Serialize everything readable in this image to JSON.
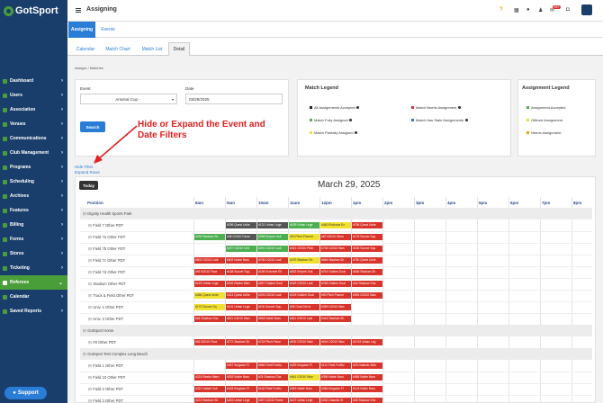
{
  "app": {
    "logo": "GotSport",
    "page_title": "Assigning",
    "badge": "99+"
  },
  "topbar_icons": [
    "help-icon",
    "grid-icon",
    "user-icon",
    "people-icon",
    "mail-icon",
    "chat-icon",
    "settings-icon"
  ],
  "sidebar": {
    "items": [
      {
        "label": "Dashboard",
        "icon": "dashboard-icon"
      },
      {
        "label": "Users",
        "icon": "users-icon"
      },
      {
        "label": "Association",
        "icon": "association-icon"
      },
      {
        "label": "Venues",
        "icon": "venues-icon"
      },
      {
        "label": "Communications",
        "icon": "communications-icon"
      },
      {
        "label": "Club Management",
        "icon": "club-icon"
      },
      {
        "label": "Programs",
        "icon": "programs-icon"
      },
      {
        "label": "Scheduling",
        "icon": "scheduling-icon"
      },
      {
        "label": "Archives",
        "icon": "archives-icon"
      },
      {
        "label": "Features",
        "icon": "features-icon"
      },
      {
        "label": "Billing",
        "icon": "billing-icon"
      },
      {
        "label": "Forms",
        "icon": "forms-icon"
      },
      {
        "label": "Stores",
        "icon": "stores-icon"
      },
      {
        "label": "Ticketing",
        "icon": "ticketing-icon"
      },
      {
        "label": "Referees",
        "icon": "referees-icon",
        "active": true
      },
      {
        "label": "Calendar",
        "icon": "calendar-icon"
      },
      {
        "label": "Saved Reports",
        "icon": "reports-icon"
      }
    ],
    "support_label": "Support"
  },
  "main_tabs": [
    {
      "label": "Assigning",
      "active": true
    },
    {
      "label": "Events",
      "active": false
    }
  ],
  "sub_tabs": [
    {
      "label": "Calendar"
    },
    {
      "label": "Match Chart"
    },
    {
      "label": "Match List"
    },
    {
      "label": "Detail",
      "active": true
    }
  ],
  "breadcrumb": "Assignr  /  Matches",
  "filters": {
    "event_label": "Event",
    "event_value": "Arsenal Cup -",
    "date_label": "Date",
    "date_value": "03/29/2025",
    "search_label": "Search"
  },
  "match_legend": {
    "title": "Match Legend",
    "items": [
      {
        "label": "All Assignments Accepted",
        "color": "#222222"
      },
      {
        "label": "Match Needs Assignment",
        "color": "#d9342b"
      },
      {
        "label": "Match Fully Assigned",
        "color": "#4caf50"
      },
      {
        "label": "Match Has Stale Assignments",
        "color": "#2a7dd6"
      },
      {
        "label": "Match Partially Assigned",
        "color": "#f0e030"
      }
    ]
  },
  "assignment_legend": {
    "title": "Assignment Legend",
    "items": [
      {
        "label": "Assignment Accepted",
        "color": "#4caf50"
      },
      {
        "label": "Offered Assignment",
        "color": "#f0e030"
      },
      {
        "label": "Needs Assignment",
        "color": "#e8a000"
      }
    ]
  },
  "annotation": {
    "line1": "Hide or Expand the Event and",
    "line2": "Date Filters"
  },
  "links": {
    "hide_filter": "Hide Filter",
    "expand_rows": "Expand Rows"
  },
  "calendar": {
    "today_label": "Today",
    "title": "March 29, 2025",
    "position_header": "Position",
    "hours": [
      "8am",
      "9am",
      "10am",
      "11am",
      "12pm",
      "1pm",
      "2pm",
      "3pm",
      "4pm",
      "5pm",
      "6pm",
      "7pm",
      "8pm"
    ]
  },
  "schedule": [
    {
      "type": "group",
      "label": "Dignity Health Sports Park"
    },
    {
      "type": "field",
      "label": "Field 7 Other PDT",
      "events": [
        {
          "start": 1.0,
          "width": 1,
          "text": "#296 Quest Unite",
          "color": "#555555"
        },
        {
          "start": 2.0,
          "width": 1,
          "text": "#131 Urban Lege",
          "color": "#555555"
        },
        {
          "start": 3.0,
          "width": 1,
          "text": "#159 Urban Lege",
          "color": "#4caf50"
        },
        {
          "start": 4.0,
          "width": 1,
          "text": "#460 Endzone Ex",
          "color": "#f0e030"
        },
        {
          "start": 5.0,
          "width": 1,
          "text": "#756 Quest Unite",
          "color": "#d9342b"
        }
      ]
    },
    {
      "type": "field",
      "label": "Field 7a Other PDT",
      "events": [
        {
          "start": 0.0,
          "width": 1,
          "text": "#290 Stadium Sh",
          "color": "#4caf50"
        },
        {
          "start": 1.0,
          "width": 1,
          "text": "#38 G2010 Fame",
          "color": "#555555"
        },
        {
          "start": 2.0,
          "width": 1,
          "text": "#298 Empire Unit",
          "color": "#4caf50"
        },
        {
          "start": 3.0,
          "width": 1,
          "text": "#20 Pitch Pioneer",
          "color": "#f0e030"
        },
        {
          "start": 4.0,
          "width": 1,
          "text": "#67 B2010 Strea",
          "color": "#d9342b"
        },
        {
          "start": 5.0,
          "width": 1,
          "text": "#176 Soccer Squ",
          "color": "#d9342b"
        }
      ]
    },
    {
      "type": "field",
      "label": "Field 7b Other PDT",
      "events": [
        {
          "start": 1.0,
          "width": 1,
          "text": "#307 G2010 Unit",
          "color": "#4caf50"
        },
        {
          "start": 2.0,
          "width": 1,
          "text": "#251 G2010 Ladi",
          "color": "#4caf50"
        },
        {
          "start": 3.0,
          "width": 1,
          "text": "#321 G2010 Pitch",
          "color": "#d9342b"
        },
        {
          "start": 4.0,
          "width": 1,
          "text": "#736 G2010 Wan",
          "color": "#d9342b"
        },
        {
          "start": 5.0,
          "width": 1,
          "text": "#155 Soccer Squ",
          "color": "#d9342b"
        }
      ]
    },
    {
      "type": "field",
      "label": "Field 7c Other PDT",
      "events": [
        {
          "start": 0.0,
          "width": 1,
          "text": "#502 G2010 Ladi",
          "color": "#d9342b"
        },
        {
          "start": 1.0,
          "width": 1,
          "text": "#603 Noble Naru",
          "color": "#d9342b"
        },
        {
          "start": 2.0,
          "width": 1,
          "text": "#708 G2010 Ladi",
          "color": "#d9342b"
        },
        {
          "start": 3.0,
          "width": 1,
          "text": "#479 Stadium Sh",
          "color": "#f0e030"
        },
        {
          "start": 4.0,
          "width": 1,
          "text": "#664 Stadium Sh",
          "color": "#d9342b"
        },
        {
          "start": 5.0,
          "width": 1,
          "text": "#780 Quest Unite",
          "color": "#d9342b"
        }
      ]
    },
    {
      "type": "field",
      "label": "Field 7d Other PDT",
      "events": [
        {
          "start": 0.0,
          "width": 1,
          "text": "#91 B2010 Floor",
          "color": "#d9342b"
        },
        {
          "start": 1.0,
          "width": 1,
          "text": "#168 Soccer Squ",
          "color": "#d9342b"
        },
        {
          "start": 2.0,
          "width": 1,
          "text": "#186 Endzone Ell",
          "color": "#d9342b"
        },
        {
          "start": 3.0,
          "width": 1,
          "text": "#632 Empire Unit",
          "color": "#d9342b"
        },
        {
          "start": 4.0,
          "width": 1,
          "text": "#761 Golden Goal",
          "color": "#d9342b"
        },
        {
          "start": 5.0,
          "width": 1,
          "text": "#636 Stadium Sh",
          "color": "#d9342b"
        }
      ]
    },
    {
      "type": "field",
      "label": "Stadium Other PDT",
      "events": [
        {
          "start": 0.0,
          "width": 1,
          "text": "#149 Urban Lege",
          "color": "#d9342b"
        },
        {
          "start": 1.0,
          "width": 1,
          "text": "#292 Realm Warr",
          "color": "#d9342b"
        },
        {
          "start": 2.0,
          "width": 1,
          "text": "#537 Golden Goal",
          "color": "#d9342b"
        },
        {
          "start": 3.0,
          "width": 1,
          "text": "#315 G2010 Ladi",
          "color": "#d9342b"
        },
        {
          "start": 4.0,
          "width": 1,
          "text": "#765 Golden Goal",
          "color": "#d9342b"
        },
        {
          "start": 5.0,
          "width": 1,
          "text": "#44 Shadow Cha",
          "color": "#d9342b"
        }
      ]
    },
    {
      "type": "field",
      "label": "Track & Field Other PDT",
      "events": [
        {
          "start": 0.0,
          "width": 1,
          "text": "#456 Quest Unite",
          "color": "#f0e030"
        },
        {
          "start": 1.0,
          "width": 1,
          "text": "#314 Quest Unite",
          "color": "#d9342b"
        },
        {
          "start": 2.0,
          "width": 1,
          "text": "#294 G2010 Ladi",
          "color": "#d9342b"
        },
        {
          "start": 3.0,
          "width": 1,
          "text": "#129 Golden Goal",
          "color": "#d9342b"
        },
        {
          "start": 4.0,
          "width": 1,
          "text": "#90 Pitch Pionee",
          "color": "#d9342b"
        },
        {
          "start": 5.0,
          "width": 1,
          "text": "#394 G2010 Wan",
          "color": "#d9342b"
        }
      ]
    },
    {
      "type": "field",
      "label": "Univ. 1 Other PDT",
      "events": [
        {
          "start": 0.0,
          "width": 1,
          "text": "#170 Soccer Sq",
          "color": "#f0e030"
        },
        {
          "start": 1.0,
          "width": 1,
          "text": "#101 Urban Lege",
          "color": "#d9342b"
        },
        {
          "start": 2.0,
          "width": 1,
          "text": "#100 Soccer Squ",
          "color": "#d9342b"
        },
        {
          "start": 3.0,
          "width": 1,
          "text": "#92 Goal Girl st",
          "color": "#d9342b"
        },
        {
          "start": 4.0,
          "width": 1,
          "text": "#399 G2010 Wan",
          "color": "#d9342b"
        }
      ]
    },
    {
      "type": "field",
      "label": "Univ. 2 Other PDT",
      "events": [
        {
          "start": 0.0,
          "width": 1,
          "text": "#64 Shadow Cha",
          "color": "#d9342b"
        },
        {
          "start": 1.0,
          "width": 1,
          "text": "#611 G2010 Wan",
          "color": "#d9342b"
        },
        {
          "start": 2.0,
          "width": 1,
          "text": "#518 Noble Naru",
          "color": "#d9342b"
        },
        {
          "start": 3.0,
          "width": 1,
          "text": "#511 G2010 Ladi",
          "color": "#d9342b"
        },
        {
          "start": 4.0,
          "width": 1,
          "text": "#318 Stadium Sh",
          "color": "#d9342b"
        }
      ]
    },
    {
      "type": "group",
      "label": "GotSport Home"
    },
    {
      "type": "field",
      "label": "#9 Other PDT",
      "events": [
        {
          "start": 0.0,
          "width": 1,
          "text": "#81 B2010 Floor",
          "color": "#d9342b"
        },
        {
          "start": 1.0,
          "width": 1,
          "text": "#772 Stadium Sh",
          "color": "#d9342b"
        },
        {
          "start": 2.0,
          "width": 1,
          "text": "#718 Pitch Pione",
          "color": "#d9342b"
        },
        {
          "start": 3.0,
          "width": 1,
          "text": "#676 G2010 Wan",
          "color": "#d9342b"
        },
        {
          "start": 4.0,
          "width": 1,
          "text": "#816 G2010 Wan",
          "color": "#d9342b"
        },
        {
          "start": 5.0,
          "width": 1,
          "text": "#1015 Urban Leg",
          "color": "#d9342b"
        }
      ]
    },
    {
      "type": "group",
      "label": "GotSport Test Complex Long Beach"
    },
    {
      "type": "field",
      "label": "Field 1 Other PDT",
      "events": [
        {
          "start": 1.0,
          "width": 1,
          "text": "#407 Kingdom Fl",
          "color": "#d9342b"
        },
        {
          "start": 2.0,
          "width": 1,
          "text": "#666 Field Fortitu",
          "color": "#d9342b"
        },
        {
          "start": 3.0,
          "width": 1,
          "text": "#433 Kingdom Fl",
          "color": "#d9342b"
        },
        {
          "start": 4.0,
          "width": 1,
          "text": "#112 Field Fortitu",
          "color": "#d9342b"
        },
        {
          "start": 5.0,
          "width": 1,
          "text": "#23 Galactic Strik",
          "color": "#d9342b"
        }
      ]
    },
    {
      "type": "field",
      "label": "Field 10 Other PDT",
      "events": [
        {
          "start": 0.0,
          "width": 1,
          "text": "#215 Realm Warri",
          "color": "#d9342b"
        },
        {
          "start": 1.0,
          "width": 1,
          "text": "#303 Noble Naru",
          "color": "#d9342b"
        },
        {
          "start": 2.0,
          "width": 1,
          "text": "#24 Shadow Cha",
          "color": "#d9342b"
        },
        {
          "start": 3.0,
          "width": 1,
          "text": "#561 G2010 Wan",
          "color": "#f0e030"
        },
        {
          "start": 4.0,
          "width": 1,
          "text": "#396 Noble Naru",
          "color": "#d9342b"
        },
        {
          "start": 5.0,
          "width": 1,
          "text": "#456 Noble Naru",
          "color": "#d9342b"
        }
      ]
    },
    {
      "type": "field",
      "label": "Field 2 Other PDT",
      "events": [
        {
          "start": 0.0,
          "width": 1,
          "text": "#313 Valiant Vult",
          "color": "#d9342b"
        },
        {
          "start": 1.0,
          "width": 1,
          "text": "#433 Kingdom Fl",
          "color": "#d9342b"
        },
        {
          "start": 2.0,
          "width": 1,
          "text": "#118 Field Fortitu",
          "color": "#d9342b"
        },
        {
          "start": 3.0,
          "width": 1,
          "text": "#315 Noble Naru",
          "color": "#d9342b"
        },
        {
          "start": 4.0,
          "width": 1,
          "text": "#366 Kingdom Fl",
          "color": "#d9342b"
        },
        {
          "start": 5.0,
          "width": 1,
          "text": "#103 Noble Naru",
          "color": "#d9342b"
        }
      ]
    },
    {
      "type": "field",
      "label": "Field 3 Other PDT",
      "events": [
        {
          "start": 0.0,
          "width": 1,
          "text": "#213 Stadium Sh",
          "color": "#d9342b"
        },
        {
          "start": 1.0,
          "width": 1,
          "text": "#415 Urban Lege",
          "color": "#d9342b"
        },
        {
          "start": 2.0,
          "width": 1,
          "text": "#337 G2010 Fame",
          "color": "#d9342b"
        },
        {
          "start": 3.0,
          "width": 1,
          "text": "#107 Urban Lege",
          "color": "#d9342b"
        },
        {
          "start": 4.0,
          "width": 1,
          "text": "#333 Galactic St",
          "color": "#d9342b"
        },
        {
          "start": 5.0,
          "width": 1,
          "text": "#35 Shadow Cha",
          "color": "#d9342b"
        }
      ]
    }
  ]
}
